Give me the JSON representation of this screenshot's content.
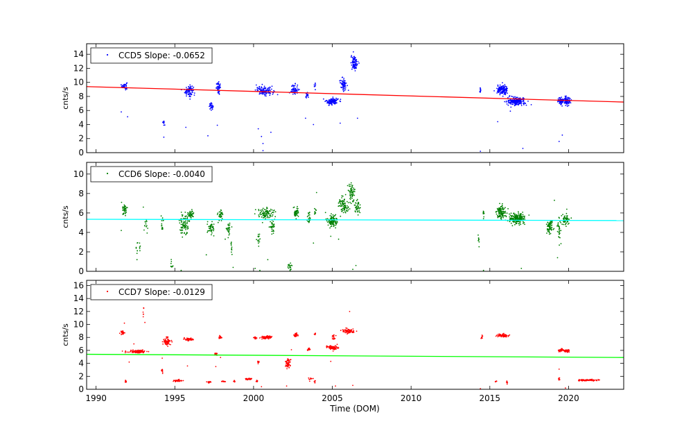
{
  "chart_data": {
    "type": "scatter",
    "xlabel": "Time (DOM)",
    "xlim": [
      1989.4,
      2023.5
    ],
    "xticks": [
      1990,
      1995,
      2000,
      2005,
      2010,
      2015,
      2020
    ],
    "grid": false,
    "legend_position": "top-left",
    "panels": [
      {
        "id": "ccd5",
        "ylabel": "cnts/s",
        "ylim": [
          0,
          15.5
        ],
        "yticks": [
          0,
          2,
          4,
          6,
          8,
          10,
          12,
          14
        ],
        "series": [
          {
            "name": "CCD5 Slope: -0.0652",
            "color": "#0000ff"
          }
        ],
        "fit": {
          "color": "#ff0000",
          "start": [
            1989.4,
            9.4
          ],
          "end": [
            2023.5,
            7.2
          ]
        },
        "clusters": [
          [
            1991.8,
            9.5,
            0.15,
            0.5,
            40
          ],
          [
            1994.3,
            4.3,
            0.08,
            0.25,
            12
          ],
          [
            1995.9,
            8.8,
            0.25,
            0.7,
            90
          ],
          [
            1997.3,
            6.6,
            0.12,
            0.4,
            30
          ],
          [
            1997.8,
            9.2,
            0.15,
            0.7,
            40
          ],
          [
            2000.7,
            8.8,
            0.5,
            0.55,
            120
          ],
          [
            2002.6,
            9.0,
            0.2,
            0.7,
            50
          ],
          [
            2003.4,
            8.0,
            0.1,
            0.4,
            20
          ],
          [
            2003.9,
            9.6,
            0.05,
            0.6,
            8
          ],
          [
            2005.0,
            7.3,
            0.35,
            0.45,
            120
          ],
          [
            2005.7,
            9.8,
            0.2,
            0.8,
            60
          ],
          [
            2006.4,
            12.8,
            0.2,
            1.0,
            90
          ],
          [
            2014.4,
            8.8,
            0.05,
            0.5,
            10
          ],
          [
            2015.8,
            8.9,
            0.3,
            0.6,
            140
          ],
          [
            2016.7,
            7.3,
            0.5,
            0.5,
            200
          ],
          [
            2019.5,
            7.4,
            0.2,
            0.5,
            60
          ],
          [
            2019.9,
            7.4,
            0.2,
            0.6,
            80
          ]
        ],
        "outliers": [
          [
            1991.6,
            5.8
          ],
          [
            1992.0,
            5.1
          ],
          [
            1994.3,
            2.2
          ],
          [
            1995.7,
            3.6
          ],
          [
            1997.1,
            2.4
          ],
          [
            1997.7,
            3.9
          ],
          [
            2000.3,
            3.4
          ],
          [
            2000.5,
            2.3
          ],
          [
            2000.6,
            1.3
          ],
          [
            2000.6,
            0.3
          ],
          [
            2001.1,
            2.9
          ],
          [
            2003.3,
            4.9
          ],
          [
            2003.8,
            4.0
          ],
          [
            2005.5,
            4.2
          ],
          [
            2006.6,
            4.9
          ],
          [
            2015.5,
            4.4
          ],
          [
            2016.3,
            5.9
          ],
          [
            2017.1,
            0.6
          ],
          [
            2019.4,
            1.6
          ],
          [
            2019.6,
            2.5
          ],
          [
            2014.4,
            0.2
          ]
        ]
      },
      {
        "id": "ccd6",
        "ylabel": "cnts/s",
        "ylim": [
          0,
          11.2
        ],
        "yticks": [
          0,
          2,
          4,
          6,
          8,
          10
        ],
        "series": [
          {
            "name": "CCD6 Slope: -0.0040",
            "color": "#008000"
          }
        ],
        "fit": {
          "color": "#00ffff",
          "start": [
            1989.4,
            5.35
          ],
          "end": [
            2023.5,
            5.22
          ]
        },
        "clusters": [
          [
            1991.8,
            6.3,
            0.15,
            0.5,
            40
          ],
          [
            1992.7,
            2.3,
            0.15,
            0.6,
            12
          ],
          [
            1993.2,
            4.6,
            0.1,
            0.8,
            12
          ],
          [
            1994.2,
            4.9,
            0.08,
            0.8,
            15
          ],
          [
            1994.8,
            0.7,
            0.1,
            0.4,
            8
          ],
          [
            1995.6,
            4.8,
            0.25,
            1.0,
            80
          ],
          [
            1996.0,
            5.8,
            0.2,
            0.5,
            40
          ],
          [
            1997.3,
            4.5,
            0.2,
            0.6,
            50
          ],
          [
            1997.9,
            5.8,
            0.15,
            0.5,
            30
          ],
          [
            1998.4,
            4.3,
            0.12,
            0.6,
            25
          ],
          [
            1998.6,
            2.4,
            0.06,
            0.5,
            10
          ],
          [
            2000.3,
            3.3,
            0.08,
            0.5,
            15
          ],
          [
            2000.8,
            5.9,
            0.45,
            0.6,
            100
          ],
          [
            2001.2,
            4.5,
            0.15,
            0.8,
            30
          ],
          [
            2002.3,
            0.5,
            0.1,
            0.5,
            20
          ],
          [
            2002.7,
            6.0,
            0.15,
            0.5,
            40
          ],
          [
            2003.5,
            5.5,
            0.1,
            0.6,
            20
          ],
          [
            2003.9,
            6.2,
            0.05,
            0.5,
            10
          ],
          [
            2005.0,
            5.1,
            0.3,
            0.6,
            100
          ],
          [
            2005.7,
            6.8,
            0.3,
            0.8,
            80
          ],
          [
            2006.2,
            8.0,
            0.2,
            1.0,
            60
          ],
          [
            2006.6,
            6.6,
            0.2,
            0.6,
            40
          ],
          [
            2014.3,
            3.3,
            0.06,
            0.5,
            10
          ],
          [
            2014.6,
            5.8,
            0.06,
            0.5,
            8
          ],
          [
            2015.7,
            6.1,
            0.3,
            0.6,
            120
          ],
          [
            2016.7,
            5.4,
            0.5,
            0.5,
            200
          ],
          [
            2018.8,
            4.6,
            0.2,
            0.7,
            60
          ],
          [
            2019.4,
            4.4,
            0.1,
            1.2,
            30
          ],
          [
            2019.8,
            5.3,
            0.2,
            0.6,
            60
          ]
        ],
        "outliers": [
          [
            1991.6,
            4.2
          ],
          [
            1992.6,
            1.2
          ],
          [
            1993.0,
            6.6
          ],
          [
            1995.4,
            0.1
          ],
          [
            1997.0,
            1.7
          ],
          [
            1998.2,
            3.3
          ],
          [
            1998.7,
            0.4
          ],
          [
            2000.1,
            0.3
          ],
          [
            2000.4,
            0.1
          ],
          [
            2000.9,
            1.2
          ],
          [
            2003.8,
            2.9
          ],
          [
            2004.0,
            8.1
          ],
          [
            2004.9,
            3.6
          ],
          [
            2005.4,
            3.3
          ],
          [
            2006.3,
            0.2
          ],
          [
            2006.5,
            0.6
          ],
          [
            2014.6,
            0.1
          ],
          [
            2017.0,
            0.3
          ],
          [
            2019.3,
            1.4
          ],
          [
            2019.1,
            7.3
          ]
        ]
      },
      {
        "id": "ccd7",
        "ylabel": "cnts/s",
        "ylim": [
          0,
          16.8
        ],
        "yticks": [
          0,
          2,
          4,
          6,
          8,
          10,
          12,
          14,
          16
        ],
        "series": [
          {
            "name": "CCD7 Slope: -0.0129",
            "color": "#ff0000"
          }
        ],
        "fit": {
          "color": "#00ff00",
          "start": [
            1989.4,
            5.4
          ],
          "end": [
            2023.5,
            4.9
          ]
        },
        "clusters": [
          [
            1991.7,
            8.7,
            0.1,
            0.3,
            25
          ],
          [
            1991.9,
            1.2,
            0.05,
            0.2,
            8
          ],
          [
            1992.6,
            5.8,
            0.5,
            0.2,
            120
          ],
          [
            1993.0,
            12.0,
            0.04,
            0.6,
            6
          ],
          [
            1994.2,
            2.8,
            0.05,
            0.3,
            8
          ],
          [
            1994.5,
            7.3,
            0.2,
            0.7,
            70
          ],
          [
            1995.2,
            1.3,
            0.25,
            0.15,
            40
          ],
          [
            1995.9,
            7.7,
            0.25,
            0.2,
            60
          ],
          [
            1997.2,
            1.1,
            0.15,
            0.1,
            15
          ],
          [
            1997.6,
            5.5,
            0.1,
            0.2,
            15
          ],
          [
            1997.9,
            8.0,
            0.1,
            0.2,
            25
          ],
          [
            1998.1,
            1.2,
            0.1,
            0.1,
            12
          ],
          [
            1998.8,
            1.2,
            0.05,
            0.2,
            6
          ],
          [
            1999.7,
            1.6,
            0.2,
            0.1,
            30
          ],
          [
            2000.1,
            7.9,
            0.1,
            0.2,
            15
          ],
          [
            2000.2,
            1.3,
            0.05,
            0.2,
            8
          ],
          [
            2000.3,
            4.2,
            0.05,
            0.2,
            10
          ],
          [
            2000.8,
            8.0,
            0.3,
            0.2,
            80
          ],
          [
            2002.2,
            4.0,
            0.15,
            0.7,
            60
          ],
          [
            2002.7,
            8.4,
            0.12,
            0.3,
            30
          ],
          [
            2003.5,
            6.2,
            0.08,
            0.2,
            15
          ],
          [
            2003.6,
            1.6,
            0.1,
            0.2,
            12
          ],
          [
            2003.9,
            1.2,
            0.05,
            0.2,
            6
          ],
          [
            2003.9,
            8.4,
            0.05,
            0.3,
            8
          ],
          [
            2005.0,
            6.4,
            0.3,
            0.3,
            80
          ],
          [
            2005.1,
            8.0,
            0.1,
            0.5,
            15
          ],
          [
            2006.0,
            9.0,
            0.35,
            0.3,
            80
          ],
          [
            2014.5,
            8.1,
            0.05,
            0.3,
            8
          ],
          [
            2015.4,
            1.2,
            0.05,
            0.1,
            6
          ],
          [
            2015.8,
            8.3,
            0.3,
            0.2,
            80
          ],
          [
            2016.1,
            1.1,
            0.05,
            0.2,
            6
          ],
          [
            2019.5,
            6.0,
            0.15,
            0.2,
            30
          ],
          [
            2019.4,
            1.6,
            0.05,
            0.2,
            8
          ],
          [
            2019.9,
            5.9,
            0.2,
            0.2,
            40
          ],
          [
            2021.2,
            1.4,
            0.6,
            0.1,
            100
          ]
        ],
        "outliers": [
          [
            1991.8,
            10.2
          ],
          [
            1992.1,
            4.2
          ],
          [
            1992.4,
            7.0
          ],
          [
            1993.1,
            10.3
          ],
          [
            1994.2,
            4.8
          ],
          [
            1995.8,
            3.6
          ],
          [
            1997.6,
            3.5
          ],
          [
            1997.9,
            4.9
          ],
          [
            2000.5,
            0.4
          ],
          [
            2002.1,
            0.5
          ],
          [
            2002.4,
            6.1
          ],
          [
            2004.9,
            4.3
          ],
          [
            2005.2,
            0.5
          ],
          [
            2006.1,
            12.0
          ],
          [
            2006.3,
            0.6
          ],
          [
            2014.4,
            0.1
          ],
          [
            2016.1,
            0.8
          ],
          [
            2019.4,
            3.1
          ],
          [
            2019.8,
            0.2
          ]
        ]
      }
    ]
  }
}
